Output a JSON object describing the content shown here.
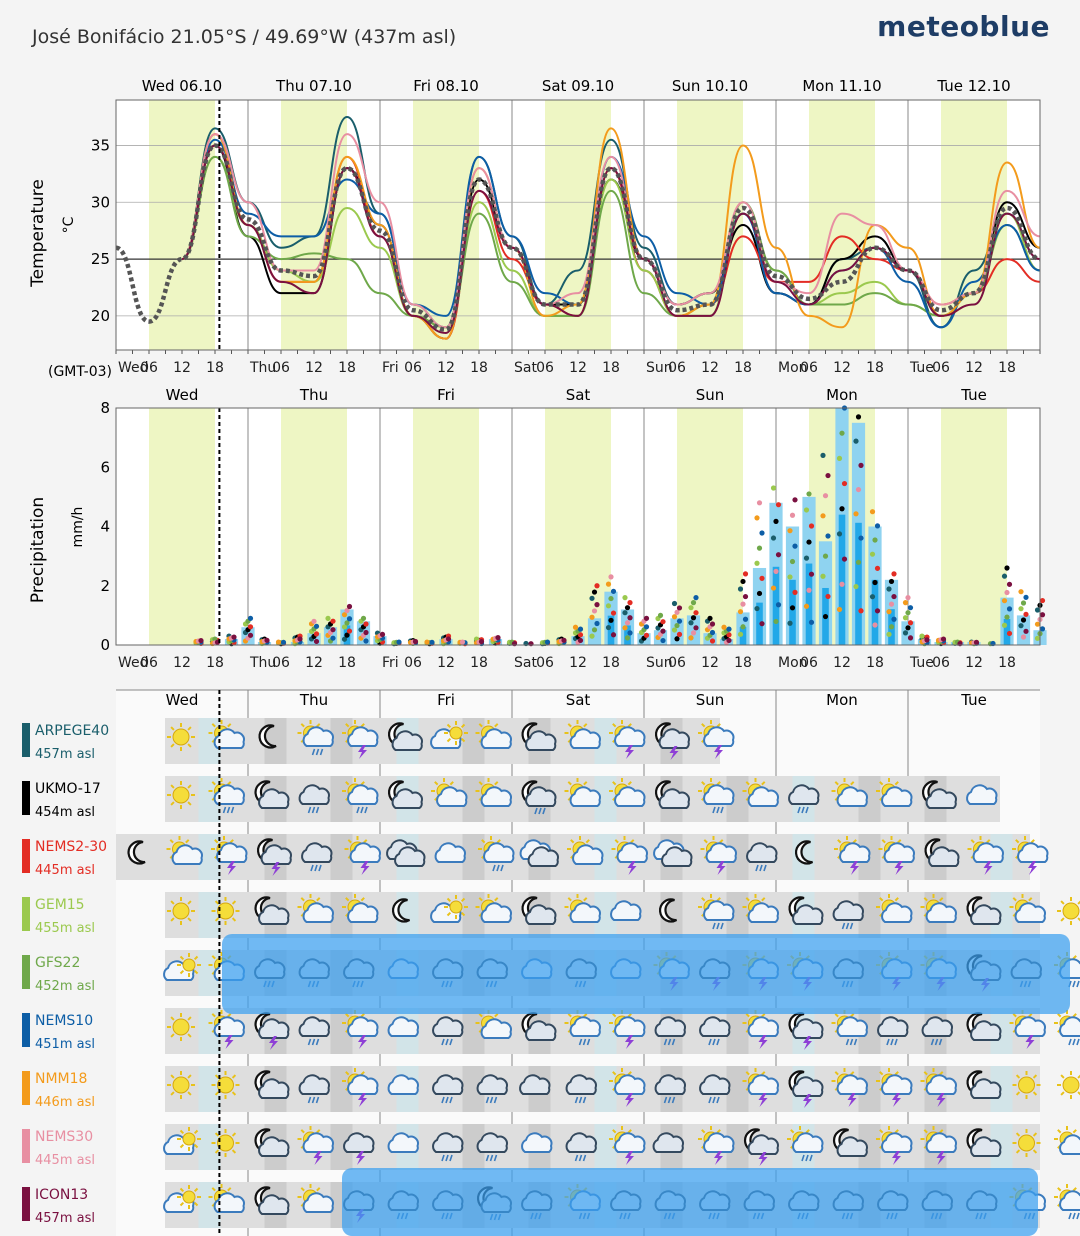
{
  "header": {
    "title": "José Bonifácio  21.05°S / 49.69°W (437m asl)",
    "logo": "meteoblue"
  },
  "timezone": "(GMT-03)",
  "dates": [
    "Wed 06.10",
    "Thu 07.10",
    "Fri 08.10",
    "Sat 09.10",
    "Sun 10.10",
    "Mon 11.10",
    "Tue 12.10"
  ],
  "day_short": [
    "Wed",
    "Thu",
    "Fri",
    "Sat",
    "Sun",
    "Mon",
    "Tue"
  ],
  "hour_ticks": [
    "06",
    "12",
    "18"
  ],
  "colors": {
    "daylight": "#eef6c4",
    "pane": "#ffffff",
    "grid": "#cccccc",
    "precip_bar": "#8fd3f0",
    "precip_bar_dark": "#22a8e8"
  },
  "chart_data": [
    {
      "type": "line",
      "ylabel": "Temperature",
      "unit": "°C",
      "ylim": [
        17,
        39
      ],
      "yticks": [
        20,
        25,
        30,
        35
      ],
      "x_unit": "hours from Wed 00:00 (GMT-03)",
      "series": [
        {
          "name": "ARPEGE40",
          "color": "#1a5e6b",
          "x": [
            12,
            18,
            24,
            30,
            36,
            42,
            48,
            54,
            60,
            66,
            72,
            78,
            84,
            90,
            96,
            102,
            108,
            114,
            120,
            126,
            132,
            138,
            144,
            150,
            156,
            162,
            168
          ],
          "y": [
            25,
            36.5,
            30,
            26,
            27,
            37.5,
            29,
            21,
            19,
            34,
            27,
            21,
            24,
            35.5,
            26,
            21,
            22,
            29,
            22,
            21,
            25,
            26,
            24,
            19,
            24,
            29,
            25
          ]
        },
        {
          "name": "UKMO-17",
          "color": "#000000",
          "x": [
            12,
            18,
            24,
            30,
            36,
            42,
            48,
            54,
            60,
            66,
            72,
            78,
            84,
            90,
            96,
            102,
            108,
            114,
            120,
            126,
            132,
            138,
            144,
            150,
            156,
            162,
            168
          ],
          "y": [
            25,
            35,
            27,
            22,
            22,
            33,
            28,
            20,
            18,
            32,
            26,
            21,
            21,
            32,
            25,
            21,
            22,
            28,
            22,
            21,
            25,
            27,
            24,
            20,
            22,
            30,
            26
          ]
        },
        {
          "name": "NEMS2-30",
          "color": "#e32d24",
          "x": [
            12,
            18,
            24,
            30,
            36,
            42,
            48,
            54,
            60,
            66,
            72,
            78,
            84,
            90,
            96,
            102,
            108,
            114,
            120,
            126,
            132,
            138,
            144,
            150,
            156,
            162,
            168
          ],
          "y": [
            25,
            36,
            28,
            23,
            23,
            34,
            27,
            20,
            18,
            31,
            25,
            21,
            20,
            33,
            24,
            20,
            21,
            27,
            23,
            23,
            27,
            25,
            24,
            21,
            22,
            25,
            23
          ]
        },
        {
          "name": "GEM15",
          "color": "#9bc94e",
          "x": [
            12,
            18,
            24,
            30,
            36,
            42,
            48,
            54,
            60,
            66,
            72,
            78,
            84,
            90,
            96,
            102,
            108,
            114,
            120,
            126,
            132,
            138,
            144,
            150,
            156,
            162,
            168
          ],
          "y": [
            25,
            34,
            28,
            24,
            23,
            29.5,
            26,
            20,
            19,
            30,
            24,
            20,
            20,
            32,
            24,
            20,
            21,
            29,
            24,
            21,
            22,
            23,
            21,
            20,
            22,
            29,
            24
          ]
        },
        {
          "name": "GFS22",
          "color": "#6fa84a",
          "x": [
            12,
            18,
            24,
            30,
            36,
            42,
            48,
            54,
            60,
            66,
            72,
            78,
            84,
            90,
            96,
            102,
            108,
            114,
            120,
            126,
            132,
            138,
            144,
            150,
            156,
            162,
            168
          ],
          "y": [
            25,
            34,
            27,
            25,
            25.5,
            25,
            22,
            20,
            19,
            29,
            23,
            20,
            20,
            31,
            22,
            20,
            20,
            30,
            24,
            21,
            21,
            22,
            21,
            20,
            22,
            28,
            24
          ]
        },
        {
          "name": "NEMS10",
          "color": "#0d5ea6",
          "x": [
            12,
            18,
            24,
            30,
            36,
            42,
            48,
            54,
            60,
            66,
            72,
            78,
            84,
            90,
            96,
            102,
            108,
            114,
            120,
            126,
            132,
            138,
            144,
            150,
            156,
            162,
            168
          ],
          "y": [
            25,
            35.5,
            29,
            27,
            27,
            32,
            29,
            21,
            20,
            34,
            27,
            22,
            21,
            34,
            27,
            22,
            21,
            29,
            22,
            21,
            24,
            26,
            23,
            19,
            23,
            28,
            24
          ]
        },
        {
          "name": "NMM18",
          "color": "#f39b1c",
          "x": [
            12,
            18,
            24,
            30,
            36,
            42,
            48,
            54,
            60,
            66,
            72,
            78,
            84,
            90,
            96,
            102,
            108,
            114,
            120,
            126,
            132,
            138,
            144,
            150,
            156,
            162,
            168
          ],
          "y": [
            25,
            36,
            28,
            23,
            23,
            34,
            28,
            20,
            18,
            33,
            26,
            20,
            21,
            36.5,
            25,
            20,
            21,
            35,
            26,
            20,
            19,
            28,
            26,
            20,
            22,
            33.5,
            26
          ]
        },
        {
          "name": "NEMS30",
          "color": "#e88fa2",
          "x": [
            12,
            18,
            24,
            30,
            36,
            42,
            48,
            54,
            60,
            66,
            72,
            78,
            84,
            90,
            96,
            102,
            108,
            114,
            120,
            126,
            132,
            138,
            144,
            150,
            156,
            162,
            168
          ],
          "y": [
            25,
            36,
            30,
            24,
            24,
            36,
            30,
            21,
            19,
            33,
            26,
            21,
            22,
            34,
            25,
            21,
            22,
            30,
            23,
            22,
            29,
            28,
            24,
            21,
            22,
            31,
            27
          ]
        },
        {
          "name": "ICON13",
          "color": "#7a1040",
          "x": [
            12,
            18,
            24,
            30,
            36,
            42,
            48,
            54,
            60,
            66,
            72,
            78,
            84,
            90,
            96,
            102,
            108,
            114,
            120,
            126,
            132,
            138,
            144,
            150,
            156,
            162,
            168
          ],
          "y": [
            25,
            35,
            28,
            23,
            22,
            33,
            27,
            20,
            18.5,
            31,
            26,
            21,
            20,
            33,
            25,
            20,
            20,
            29,
            23,
            21,
            24,
            26,
            24,
            20,
            21,
            29,
            25
          ]
        },
        {
          "name": "Mean",
          "color": "#555555",
          "dashed": true,
          "x": [
            0,
            6,
            12,
            18,
            24,
            30,
            36,
            42,
            48,
            54,
            60,
            66,
            72,
            78,
            84,
            90,
            96,
            102,
            108,
            114,
            120,
            126,
            132,
            138,
            144,
            150,
            156,
            162,
            168
          ],
          "y": [
            26,
            19.5,
            25,
            35,
            28.5,
            24,
            23.5,
            33,
            27.5,
            20.5,
            18.8,
            32,
            26,
            21,
            21,
            33,
            25,
            20.5,
            21,
            29.5,
            23.5,
            21.5,
            23,
            26,
            24,
            20.5,
            22,
            29.5,
            25
          ]
        }
      ]
    },
    {
      "type": "bar",
      "ylabel": "Precipitation",
      "unit": "mm/h",
      "ylim": [
        0,
        8
      ],
      "yticks": [
        0,
        2,
        4,
        6,
        8
      ],
      "x_unit": "hours from Wed 00:00 (GMT-03)",
      "x": [
        15,
        18,
        21,
        24,
        27,
        30,
        33,
        36,
        39,
        42,
        45,
        48,
        51,
        54,
        57,
        60,
        63,
        66,
        69,
        72,
        75,
        78,
        81,
        84,
        87,
        90,
        93,
        96,
        99,
        102,
        105,
        108,
        111,
        114,
        117,
        120,
        123,
        126,
        129,
        132,
        135,
        138,
        141,
        144,
        147,
        150,
        153,
        156,
        159,
        162,
        165,
        168
      ],
      "bars": [
        0,
        0,
        0.2,
        0.6,
        0.1,
        0,
        0.1,
        0.4,
        0.6,
        1.2,
        0.8,
        0.3,
        0,
        0,
        0,
        0.2,
        0,
        0,
        0.2,
        0,
        0,
        0,
        0,
        0.3,
        0.9,
        1.8,
        1.2,
        0.4,
        0.5,
        0.9,
        1.0,
        0.4,
        0.2,
        1.1,
        2.6,
        4.8,
        4.0,
        5.0,
        3.5,
        8.0,
        7.5,
        4.0,
        2.2,
        0.8,
        0.2,
        0.1,
        0.1,
        0.1,
        0,
        1.6,
        1.0,
        0.5
      ],
      "max_dots": [
        0.15,
        0.2,
        0.3,
        0.9,
        0.2,
        0.1,
        0.3,
        0.8,
        0.9,
        1.3,
        0.9,
        0.4,
        0.1,
        0.15,
        0.1,
        0.3,
        0.1,
        0.2,
        0.25,
        0.1,
        0.05,
        0.1,
        0.2,
        0.6,
        2.0,
        2.3,
        1.6,
        0.9,
        1.0,
        1.4,
        1.6,
        0.9,
        0.6,
        2.4,
        4.8,
        5.3,
        4.9,
        5.1,
        6.4,
        8.0,
        7.7,
        4.5,
        2.4,
        1.6,
        0.3,
        0.2,
        0.1,
        0.1,
        0.05,
        2.6,
        1.8,
        1.5
      ]
    }
  ],
  "models": [
    {
      "name": "ARPEGE40",
      "alt": "457m asl",
      "color": "#1a5e6b",
      "end": 720,
      "icons": [
        "sun",
        "sunc",
        "moon",
        "sunrain",
        "sunstorm",
        "moonc",
        "cloudsun",
        "sunc",
        "moonc",
        "sunc",
        "sunstorm",
        "moonstorm",
        "sunstorm"
      ]
    },
    {
      "name": "UKMO-17",
      "alt": "454m asl",
      "color": "#000000",
      "end": 1000,
      "icons": [
        "sun",
        "sunrain",
        "moonc",
        "cloudrain",
        "sunrain",
        "moonc",
        "sunc",
        "sunc",
        "moonrain",
        "sunc",
        "sunc",
        "moonc",
        "sunrain",
        "sunc",
        "cloudrain",
        "sunc",
        "sunc",
        "moonc",
        "cloud"
      ]
    },
    {
      "name": "NEMS2-30",
      "alt": "445m asl",
      "color": "#e32d24",
      "end": 1030,
      "icons": [
        "moon",
        "sunc",
        "sunstorm",
        "moonstorm",
        "cloudrain",
        "sunstorm",
        "cloudsd",
        "cloud",
        "sunrain",
        "clouds",
        "sunc",
        "sunstorm",
        "clouds",
        "sunstorm",
        "cloudrain",
        "moon",
        "sunstorm",
        "sunstorm",
        "moonc",
        "sunstorm",
        "sunstorm"
      ]
    },
    {
      "name": "GEM15",
      "alt": "455m asl",
      "color": "#9bc94e",
      "end": 1040,
      "icons": [
        "sun",
        "sun",
        "moonc",
        "sunc",
        "sunc",
        "moon",
        "cloudsun",
        "sunc",
        "moonc",
        "sunc",
        "cloud",
        "moon",
        "sunrain",
        "sunc",
        "moonc",
        "cloudrain",
        "sunc",
        "sunc",
        "moonc",
        "sunc",
        "sun"
      ]
    },
    {
      "name": "GFS22",
      "alt": "452m asl",
      "color": "#6fa84a",
      "end": 1040,
      "icons": [
        "cloudsun",
        "sunc",
        "cloudrain",
        "cloudrain",
        "cloudrain",
        "cloud",
        "cloudrain",
        "cloudrain",
        "cloud",
        "cloudrain",
        "cloud",
        "sunstorm",
        "cloudstorm",
        "sunstorm",
        "sunstorm",
        "cloudrain",
        "sunstorm",
        "sunstorm",
        "moonstorm",
        "cloudrain",
        "sunrain"
      ]
    },
    {
      "name": "NEMS10",
      "alt": "451m asl",
      "color": "#0d5ea6",
      "end": 1040,
      "icons": [
        "sun",
        "sunstorm",
        "moonstorm",
        "cloudrain",
        "sunstorm",
        "cloud",
        "cloudrain",
        "sunc",
        "moonc",
        "sunrain",
        "sunstorm",
        "cloudrain",
        "cloudrain",
        "sunstorm",
        "moonstorm",
        "sunrain",
        "cloudrain",
        "cloudrain",
        "moonc",
        "sunstorm",
        "sunrain"
      ]
    },
    {
      "name": "NMM18",
      "alt": "446m asl",
      "color": "#f39b1c",
      "end": 1040,
      "icons": [
        "sun",
        "sun",
        "moonc",
        "cloudrain",
        "sunstorm",
        "cloud",
        "cloudrain",
        "cloudrain",
        "cloudc",
        "cloudrain",
        "sunstorm",
        "cloudrain",
        "cloudrain",
        "sunstorm",
        "moonstorm",
        "sunstorm",
        "sunstorm",
        "sunstorm",
        "moonc",
        "sun",
        "sun"
      ]
    },
    {
      "name": "NEMS30",
      "alt": "445m asl",
      "color": "#e88fa2",
      "end": 1040,
      "icons": [
        "cloudsun",
        "sun",
        "moonc",
        "sunstorm",
        "cloudstorm",
        "cloud",
        "cloudrain",
        "cloudrain",
        "cloud",
        "cloudrain",
        "sunstorm",
        "cloudc",
        "sunstorm",
        "moonstorm",
        "sunrain",
        "moonc",
        "sunstorm",
        "sunstorm",
        "moonc",
        "sun",
        "sunc"
      ]
    },
    {
      "name": "ICON13",
      "alt": "457m asl",
      "color": "#7a1040",
      "end": 1040,
      "icons": [
        "cloudsun",
        "sunc",
        "moonc",
        "sunc",
        "cloudstorm",
        "cloudrain",
        "cloudrain",
        "moonrain",
        "cloudrain",
        "sunrain",
        "cloudrain",
        "cloudrain",
        "cloudrain",
        "cloudrain",
        "cloudrain",
        "cloudrain",
        "cloudrain",
        "cloudrain",
        "cloudrain",
        "sunrain",
        "sunrain"
      ]
    }
  ]
}
